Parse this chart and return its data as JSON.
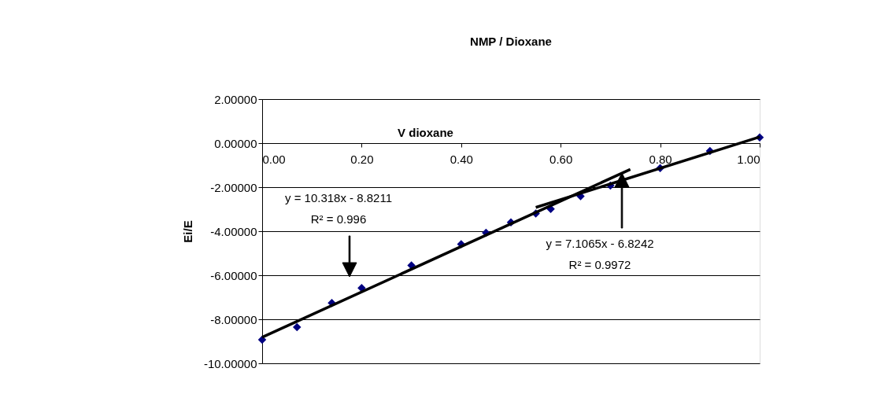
{
  "chart_data": {
    "type": "scatter",
    "title": "NMP / Dioxane",
    "xlabel": "V dioxane",
    "ylabel": "Ei/E",
    "x": [
      0,
      0.07,
      0.14,
      0.2,
      0.3,
      0.4,
      0.45,
      0.5,
      0.55,
      0.58,
      0.64,
      0.7,
      0.8,
      0.9,
      1.0
    ],
    "series": [
      {
        "color": "#000080",
        "values": [
          -8.93,
          -8.36,
          -7.26,
          -6.58,
          -5.55,
          -4.59,
          -4.07,
          -3.6,
          -3.2,
          -2.99,
          -2.41,
          -1.93,
          -1.13,
          -0.36,
          0.26
        ]
      },
      {
        "type": "line",
        "color": "#000000",
        "marker": "none",
        "x": [
          0,
          0.74
        ],
        "values": [
          -8.82,
          -1.19
        ]
      },
      {
        "type": "line",
        "color": "#000000",
        "marker": "none",
        "x": [
          0.55,
          1.0
        ],
        "values": [
          -2.92,
          0.28
        ]
      }
    ],
    "xlim": [
      0,
      1
    ],
    "xticks": [
      {
        "value": 0,
        "label": "0.00"
      },
      {
        "value": 0.2,
        "label": "0.20"
      },
      {
        "value": 0.4,
        "label": "0.40"
      },
      {
        "value": 0.6,
        "label": "0.60"
      },
      {
        "value": 0.8,
        "label": "0.80"
      },
      {
        "value": 1,
        "label": "1.00"
      }
    ],
    "ylim": [
      -10,
      2
    ],
    "yticks": [
      {
        "value": -10,
        "label": "-10.00000"
      },
      {
        "value": -8,
        "label": "-8.00000"
      },
      {
        "value": -6,
        "label": "-6.00000"
      },
      {
        "value": -4,
        "label": "-4.00000"
      },
      {
        "value": -2,
        "label": "-2.00000"
      },
      {
        "value": 0,
        "label": "0.00000"
      },
      {
        "value": 2,
        "label": "2.00000"
      }
    ],
    "grid": "y",
    "marker": "diamond",
    "line_style": "solid",
    "annotations": [
      "y = 10.318x - 8.8211\nR² = 0.996",
      "y = 7.1065x - 6.8242\nR² = 0.9972"
    ]
  }
}
